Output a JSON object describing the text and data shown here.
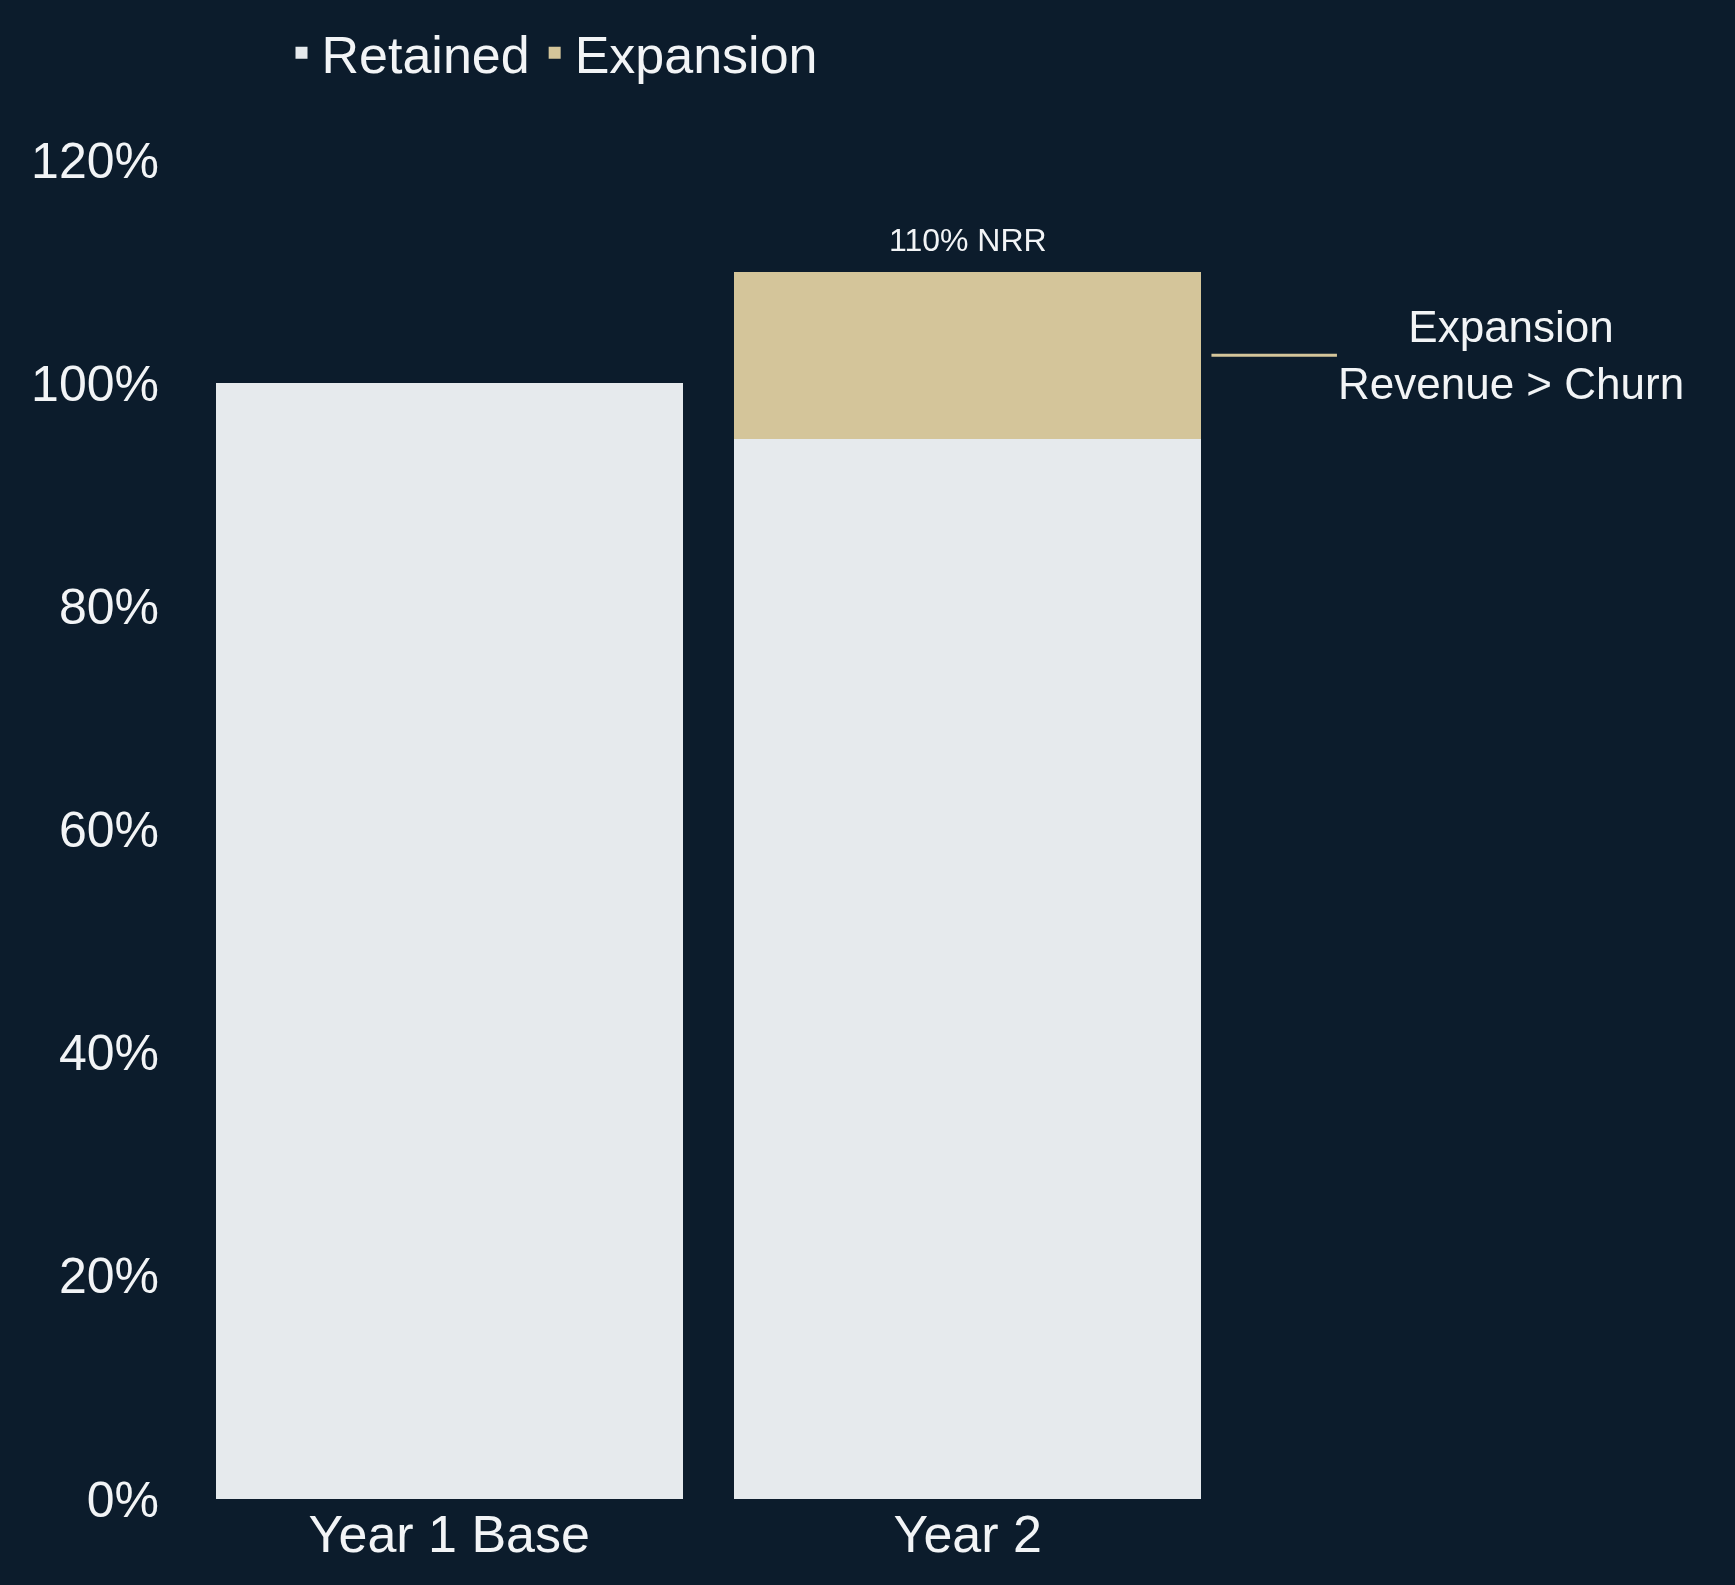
{
  "chart_data": {
    "type": "bar",
    "stacked": true,
    "categories": [
      "Year 1 Base",
      "Year 2"
    ],
    "series": [
      {
        "name": "Retained",
        "color": "#e6eaed",
        "values": [
          100,
          95
        ]
      },
      {
        "name": "Expansion",
        "color": "#d4c59a",
        "values": [
          0,
          15
        ]
      }
    ],
    "ylim": [
      0,
      120
    ],
    "yticks": [
      {
        "value": 0,
        "label": "0%"
      },
      {
        "value": 20,
        "label": "20%"
      },
      {
        "value": 40,
        "label": "40%"
      },
      {
        "value": 60,
        "label": "60%"
      },
      {
        "value": 80,
        "label": "80%"
      },
      {
        "value": 100,
        "label": "100%"
      },
      {
        "value": 120,
        "label": "120%"
      }
    ],
    "totals": [
      null,
      "110% NRR"
    ],
    "annotations": [
      "Expansion\nRevenue > Churn"
    ],
    "legend": "top",
    "grid": false
  }
}
